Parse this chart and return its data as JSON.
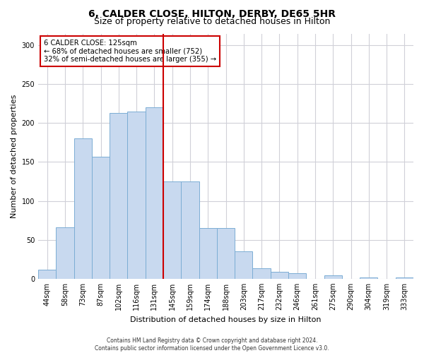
{
  "title": "6, CALDER CLOSE, HILTON, DERBY, DE65 5HR",
  "subtitle": "Size of property relative to detached houses in Hilton",
  "xlabel": "Distribution of detached houses by size in Hilton",
  "ylabel": "Number of detached properties",
  "categories": [
    "44sqm",
    "58sqm",
    "73sqm",
    "87sqm",
    "102sqm",
    "116sqm",
    "131sqm",
    "145sqm",
    "159sqm",
    "174sqm",
    "188sqm",
    "203sqm",
    "217sqm",
    "232sqm",
    "246sqm",
    "261sqm",
    "275sqm",
    "290sqm",
    "304sqm",
    "319sqm",
    "333sqm"
  ],
  "values": [
    12,
    66,
    180,
    157,
    213,
    215,
    220,
    125,
    125,
    65,
    65,
    35,
    13,
    9,
    7,
    0,
    4,
    0,
    2,
    0,
    2
  ],
  "bar_color": "#c8d9ef",
  "bar_edge_color": "#7badd4",
  "vline_x_index": 6,
  "vline_color": "#cc0000",
  "annotation_text": "6 CALDER CLOSE: 125sqm\n← 68% of detached houses are smaller (752)\n32% of semi-detached houses are larger (355) →",
  "annotation_box_color": "#ffffff",
  "annotation_box_edge_color": "#cc0000",
  "ylim": [
    0,
    315
  ],
  "yticks": [
    0,
    50,
    100,
    150,
    200,
    250,
    300
  ],
  "footer1": "Contains HM Land Registry data © Crown copyright and database right 2024.",
  "footer2": "Contains public sector information licensed under the Open Government Licence v3.0.",
  "background_color": "#ffffff",
  "grid_color": "#d0d0d8",
  "title_fontsize": 10,
  "subtitle_fontsize": 9,
  "xlabel_fontsize": 8,
  "ylabel_fontsize": 8,
  "tick_fontsize": 7,
  "footer_fontsize": 5.5
}
